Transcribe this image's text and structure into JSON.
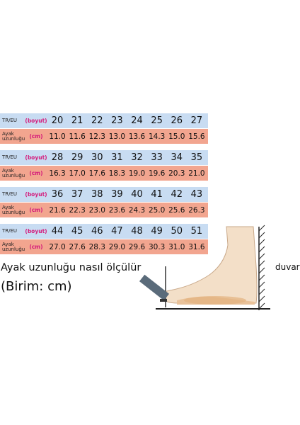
{
  "labels": {
    "size_label": "TR/EU",
    "size_unit": "(boyut)",
    "length_label": "Ayak uzunluğu",
    "length_unit": "(cm)"
  },
  "tables": [
    {
      "sizes": [
        "20",
        "21",
        "22",
        "23",
        "24",
        "25",
        "26",
        "27"
      ],
      "lengths": [
        "11.0",
        "11.6",
        "12.3",
        "13.0",
        "13.6",
        "14.3",
        "15.0",
        "15.6"
      ]
    },
    {
      "sizes": [
        "28",
        "29",
        "30",
        "31",
        "32",
        "33",
        "34",
        "35"
      ],
      "lengths": [
        "16.3",
        "17.0",
        "17.6",
        "18.3",
        "19.0",
        "19.6",
        "20.3",
        "21.0"
      ]
    },
    {
      "sizes": [
        "36",
        "37",
        "38",
        "39",
        "40",
        "41",
        "42",
        "43"
      ],
      "lengths": [
        "21.6",
        "22.3",
        "23.0",
        "23.6",
        "24.3",
        "25.0",
        "25.6",
        "26.3"
      ]
    },
    {
      "sizes": [
        "44",
        "45",
        "46",
        "47",
        "48",
        "49",
        "50",
        "51"
      ],
      "lengths": [
        "27.0",
        "27.6",
        "28.3",
        "29.0",
        "29.6",
        "30.3",
        "31.0",
        "31.6"
      ]
    }
  ],
  "caption": {
    "title": "Ayak uzunluğu nasıl ölçülür",
    "unit": "(Birim: cm)"
  },
  "illustration": {
    "wall_label": "duvar"
  },
  "colors": {
    "size_row": "#c8dcf2",
    "length_row": "#f2a58f",
    "unit_text": "#d4197a"
  }
}
